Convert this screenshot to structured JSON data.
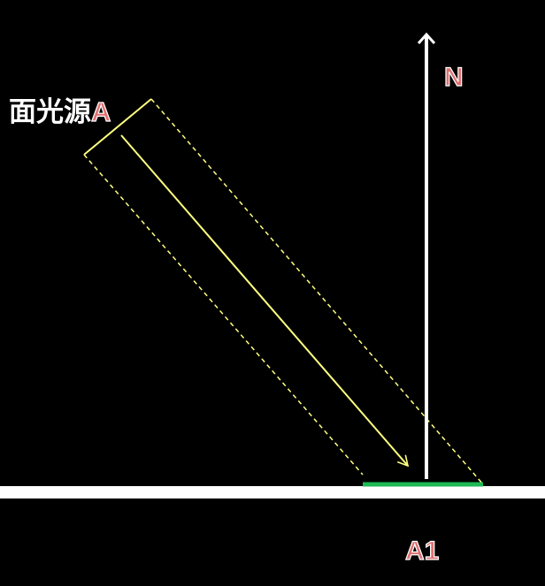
{
  "labels": {
    "source_text": "面光源",
    "source_letter": "A",
    "north": "N",
    "target": "A1"
  },
  "colors": {
    "background": "#000000",
    "ground": "#ffffff",
    "beam": "#ffff80",
    "target_surface": "#1db954",
    "north_arrow": "#ffffff",
    "label_fill_red": "#e07070",
    "label_fill_white": "#ffffff",
    "label_outline": "#ffffff"
  }
}
